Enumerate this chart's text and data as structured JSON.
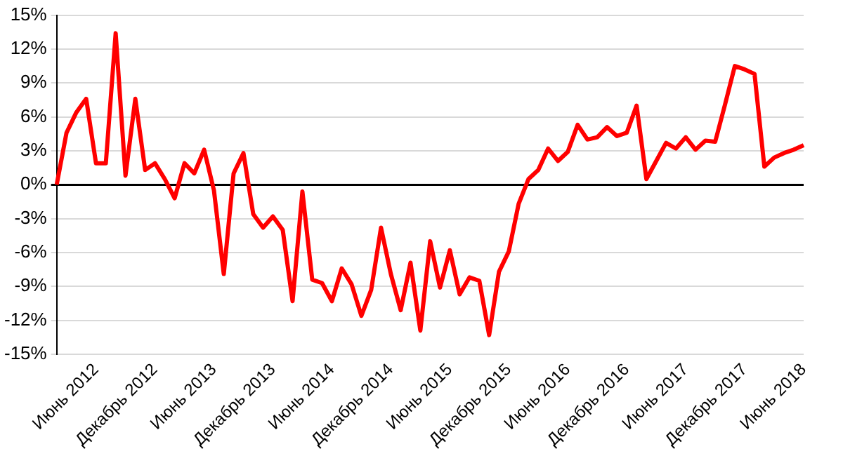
{
  "chart_data": {
    "type": "line",
    "categories": [
      null,
      null,
      null,
      null,
      "Июнь 2012",
      null,
      null,
      null,
      null,
      null,
      "Декабрь 2012",
      null,
      null,
      null,
      null,
      null,
      "Июнь 2013",
      null,
      null,
      null,
      null,
      null,
      "Декабрь 2013",
      null,
      null,
      null,
      null,
      null,
      "Июнь 2014",
      null,
      null,
      null,
      null,
      null,
      "Декабрь 2014",
      null,
      null,
      null,
      null,
      null,
      "Июнь 2015",
      null,
      null,
      null,
      null,
      null,
      "Декабрь 2015",
      null,
      null,
      null,
      null,
      null,
      "Июнь 2016",
      null,
      null,
      null,
      null,
      null,
      "Декабрь 2016",
      null,
      null,
      null,
      null,
      null,
      "Июнь 2017",
      null,
      null,
      null,
      null,
      null,
      "Декабрь 2017",
      null,
      null,
      null,
      null,
      null,
      "Июнь 2018"
    ],
    "series": [
      {
        "color": "#ff0000",
        "values": [
          0,
          4.6,
          6.4,
          7.6,
          1.9,
          1.9,
          13.4,
          0.8,
          7.6,
          1.3,
          1.9,
          0.5,
          -1.2,
          1.9,
          1.0,
          3.1,
          -0.5,
          -7.9,
          1.0,
          2.8,
          -2.6,
          -3.8,
          -2.8,
          -4.0,
          -10.3,
          -0.6,
          -8.4,
          -8.7,
          -10.3,
          -7.4,
          -8.8,
          -11.6,
          -9.3,
          -3.8,
          -7.9,
          -11.1,
          -6.9,
          -12.9,
          -5.0,
          -9.1,
          -5.8,
          -9.7,
          -8.2,
          -8.5,
          -13.3,
          -7.7,
          -5.9,
          -1.7,
          0.5,
          1.3,
          3.2,
          2.1,
          2.9,
          5.3,
          4.0,
          4.2,
          5.1,
          4.3,
          4.6,
          7.0,
          0.5,
          2.1,
          3.7,
          3.2,
          4.2,
          3.1,
          3.9,
          3.8,
          7.1,
          10.5,
          10.2,
          9.8,
          1.6,
          2.4,
          2.8,
          3.1,
          3.5
        ]
      }
    ],
    "ylim": [
      -15,
      15
    ],
    "yticks": [
      {
        "value": -15,
        "label": "-15%"
      },
      {
        "value": -12,
        "label": "-12%"
      },
      {
        "value": -9,
        "label": "-9%"
      },
      {
        "value": -6,
        "label": "-6%"
      },
      {
        "value": -3,
        "label": "-3%"
      },
      {
        "value": 0,
        "label": "0%"
      },
      {
        "value": 3,
        "label": "3%"
      },
      {
        "value": 6,
        "label": "6%"
      },
      {
        "value": 9,
        "label": "9%"
      },
      {
        "value": 12,
        "label": "12%"
      },
      {
        "value": 15,
        "label": "15%"
      }
    ],
    "grid": "y",
    "legend": false,
    "marker": "none",
    "line_style": "solid"
  }
}
